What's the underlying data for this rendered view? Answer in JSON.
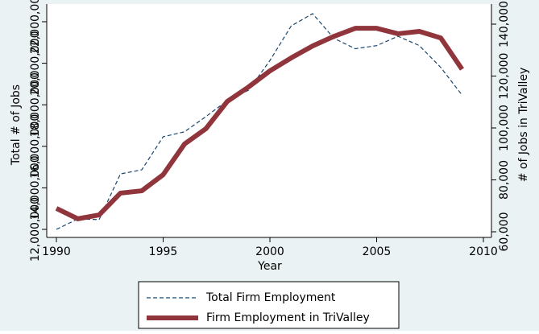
{
  "chart_data": {
    "type": "line",
    "x_label": "Year",
    "y_label": "Total # of Jobs",
    "y2_label": "# of Jobs in TriValley",
    "x": [
      1990,
      1991,
      1992,
      1993,
      1994,
      1995,
      1996,
      1997,
      1998,
      1999,
      2000,
      2001,
      2002,
      2003,
      2004,
      2005,
      2006,
      2007,
      2008,
      2009
    ],
    "xlim": [
      1990,
      2010
    ],
    "xticks": [
      1990,
      1995,
      2000,
      2005,
      2010
    ],
    "ylim": [
      12000000,
      22000000
    ],
    "yticks": [
      {
        "value": 12000000,
        "label": "12,000,000"
      },
      {
        "value": 14000000,
        "label": "14,000,000"
      },
      {
        "value": 16000000,
        "label": "16,000,000"
      },
      {
        "value": 18000000,
        "label": "18,000,000"
      },
      {
        "value": 20000000,
        "label": "20,000,000"
      },
      {
        "value": 22000000,
        "label": "22,000,000"
      }
    ],
    "y2lim": [
      60000,
      140000
    ],
    "y2ticks": [
      {
        "value": 60000,
        "label": "60,000"
      },
      {
        "value": 80000,
        "label": "80,000"
      },
      {
        "value": 100000,
        "label": "100,000"
      },
      {
        "value": 120000,
        "label": "120,000"
      },
      {
        "value": 140000,
        "label": "140,000"
      }
    ],
    "series": [
      {
        "name": "Total Firm Employment",
        "color": "#1a476f",
        "dashed": true,
        "values": [
          12000000,
          12500000,
          12470000,
          14670000,
          14870000,
          16460000,
          16700000,
          17430000,
          18200000,
          18700000,
          20130000,
          21800000,
          22390000,
          21200000,
          20700000,
          20850000,
          21300000,
          20850000,
          19800000,
          18470000
        ]
      },
      {
        "name": "Firm Employment in TriValley",
        "color": "#90353b",
        "axis": "y2",
        "values": [
          69000,
          65000,
          66500,
          74900,
          75800,
          82000,
          93800,
          99700,
          110200,
          115800,
          122000,
          127000,
          131600,
          135300,
          138400,
          138400,
          136300,
          137200,
          134700,
          122600
        ]
      }
    ]
  }
}
